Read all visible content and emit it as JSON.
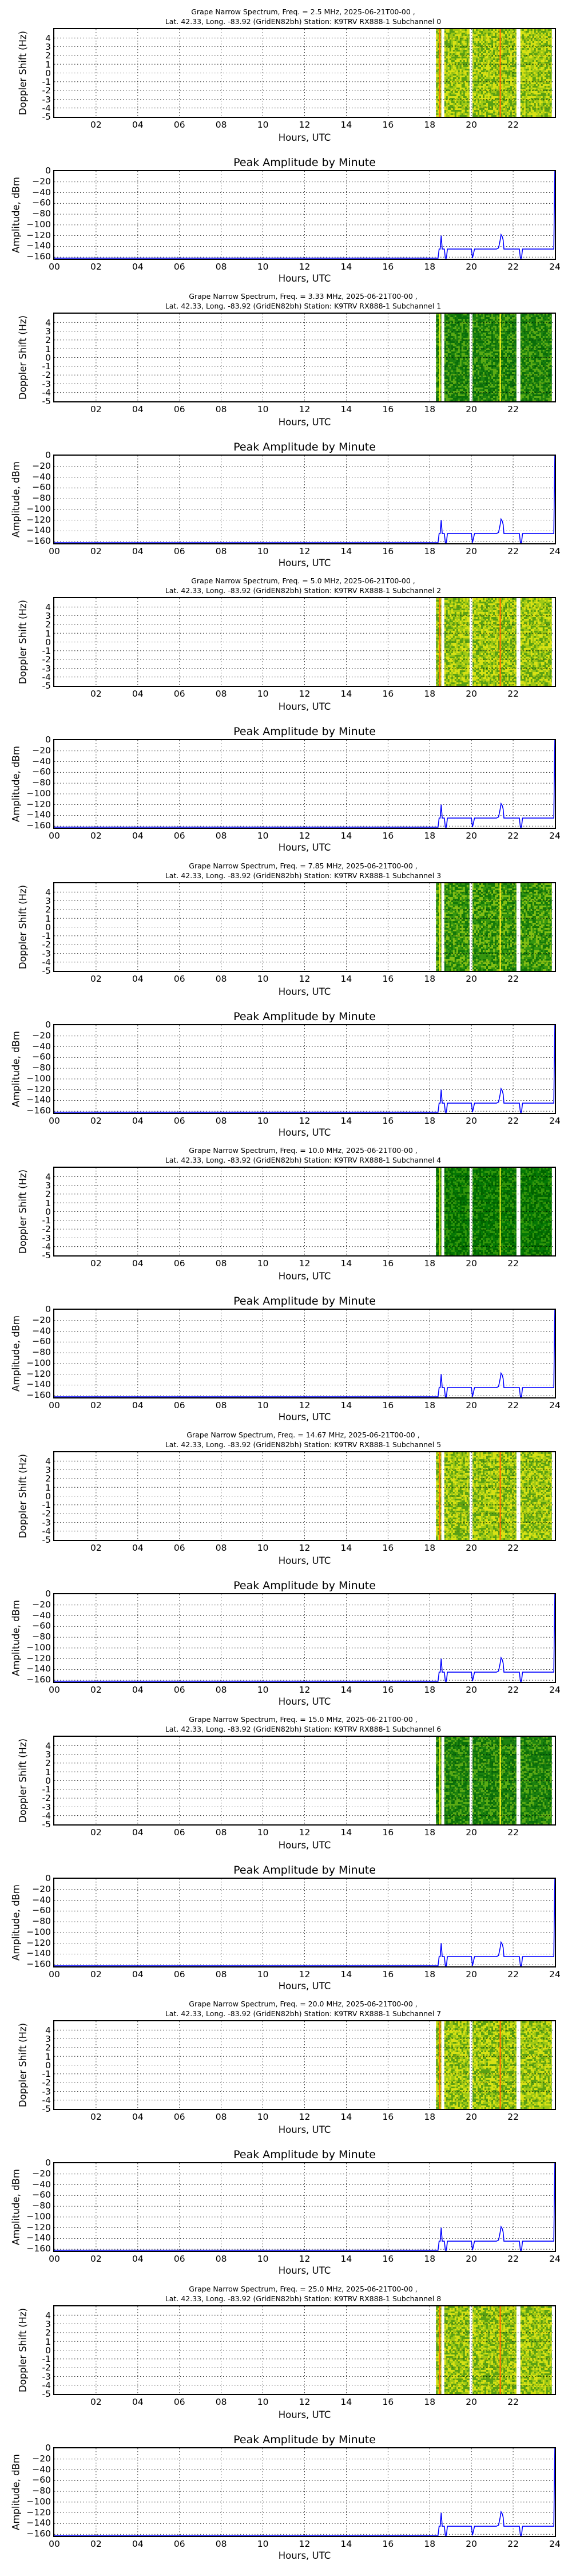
{
  "common": {
    "date": "2025-06-21T00-00",
    "location_line": "Lat.  42.33, Long. -83.92 (GridEN82bh) Station: K9TRV RX888-1",
    "spectrogram_ylabel": "Doppler Shift (Hz)",
    "amplitude_title": "Peak Amplitude by Minute",
    "amplitude_ylabel": "Amplitude, dBm",
    "xlabel": "Hours, UTC",
    "spectrogram_xticks": [
      "02",
      "04",
      "06",
      "08",
      "10",
      "12",
      "14",
      "16",
      "18",
      "20",
      "22"
    ],
    "spectrogram_yticks": [
      "4",
      "3",
      "2",
      "1",
      "0",
      "-1",
      "-2",
      "-3",
      "-4",
      "-5"
    ],
    "amplitude_xticks": [
      "00",
      "02",
      "04",
      "06",
      "08",
      "10",
      "12",
      "14",
      "16",
      "18",
      "20",
      "22",
      "24"
    ],
    "amplitude_yticks": [
      "0",
      "−20",
      "−40",
      "−60",
      "−80",
      "−100",
      "−120",
      "−140",
      "−160"
    ],
    "line_color": "#0000ff"
  },
  "panels": [
    {
      "spectrum_title_1": "Grape Narrow Spectrum, Freq. = 2.5 MHz, 2025-06-21T00-00 ,",
      "spectrum_title_2": "Lat.  42.33, Long. -83.92 (GridEN82bh) Station: K9TRV RX888-1 Subchannel 0",
      "palette": "yellow"
    },
    {
      "spectrum_title_1": "Grape Narrow Spectrum, Freq. = 3.33 MHz, 2025-06-21T00-00 ,",
      "spectrum_title_2": "Lat.  42.33, Long. -83.92 (GridEN82bh) Station: K9TRV RX888-1 Subchannel 1",
      "palette": "green"
    },
    {
      "spectrum_title_1": "Grape Narrow Spectrum, Freq. = 5.0 MHz, 2025-06-21T00-00 ,",
      "spectrum_title_2": "Lat.  42.33, Long. -83.92 (GridEN82bh) Station: K9TRV RX888-1 Subchannel 2",
      "palette": "yellow"
    },
    {
      "spectrum_title_1": "Grape Narrow Spectrum, Freq. = 7.85 MHz, 2025-06-21T00-00 ,",
      "spectrum_title_2": "Lat.  42.33, Long. -83.92 (GridEN82bh) Station: K9TRV RX888-1 Subchannel 3",
      "palette": "midgreen"
    },
    {
      "spectrum_title_1": "Grape Narrow Spectrum, Freq. = 10.0 MHz, 2025-06-21T00-00 ,",
      "spectrum_title_2": "Lat.  42.33, Long. -83.92 (GridEN82bh) Station: K9TRV RX888-1 Subchannel 4",
      "palette": "darkgreen"
    },
    {
      "spectrum_title_1": "Grape Narrow Spectrum, Freq. = 14.67 MHz, 2025-06-21T00-00 ,",
      "spectrum_title_2": "Lat.  42.33, Long. -83.92 (GridEN82bh) Station: K9TRV RX888-1 Subchannel 5",
      "palette": "yellow"
    },
    {
      "spectrum_title_1": "Grape Narrow Spectrum, Freq. = 15.0 MHz, 2025-06-21T00-00 ,",
      "spectrum_title_2": "Lat.  42.33, Long. -83.92 (GridEN82bh) Station: K9TRV RX888-1 Subchannel 6",
      "palette": "green"
    },
    {
      "spectrum_title_1": "Grape Narrow Spectrum, Freq. = 20.0 MHz, 2025-06-21T00-00 ,",
      "spectrum_title_2": "Lat.  42.33, Long. -83.92 (GridEN82bh) Station: K9TRV RX888-1 Subchannel 7",
      "palette": "yellow"
    },
    {
      "spectrum_title_1": "Grape Narrow Spectrum, Freq. = 25.0 MHz, 2025-06-21T00-00 ,",
      "spectrum_title_2": "Lat.  42.33, Long. -83.92 (GridEN82bh) Station: K9TRV RX888-1 Subchannel 8",
      "palette": "yellow"
    }
  ],
  "chart_data": [
    {
      "type": "heatmap",
      "title": "Grape Narrow Spectrum (Subchannels 0-8)",
      "xlabel": "Hours, UTC",
      "ylabel": "Doppler Shift (Hz)",
      "xlim": [
        0,
        24
      ],
      "ylim": [
        -5,
        5
      ],
      "grid": true,
      "data_segments_hours": [
        [
          18.3,
          18.55
        ],
        [
          18.7,
          19.9
        ],
        [
          20.05,
          22.15
        ],
        [
          22.35,
          23.85
        ]
      ],
      "signal_lines_hours": [
        18.45,
        21.35
      ],
      "frequencies_mhz": [
        2.5,
        3.33,
        5.0,
        7.85,
        10.0,
        14.67,
        15.0,
        20.0,
        25.0
      ]
    },
    {
      "type": "line",
      "title": "Peak Amplitude by Minute",
      "xlabel": "Hours, UTC",
      "ylabel": "Amplitude, dBm",
      "xlim": [
        0,
        24
      ],
      "ylim": [
        -163,
        0
      ],
      "grid": true,
      "x": [
        0,
        18.4,
        18.45,
        18.5,
        18.55,
        18.6,
        18.65,
        18.7,
        18.75,
        18.8,
        18.85,
        20.0,
        20.05,
        20.15,
        21.2,
        21.3,
        21.38,
        21.42,
        21.48,
        21.52,
        21.56,
        21.6,
        22.3,
        22.35,
        22.4,
        22.45,
        23.9,
        23.95,
        24.0
      ],
      "values": [
        -163,
        -163,
        -145,
        -145,
        -120,
        -145,
        -145,
        -145,
        -163,
        -163,
        -145,
        -145,
        -163,
        -145,
        -145,
        -143,
        -128,
        -118,
        -122,
        -128,
        -145,
        -145,
        -145,
        -163,
        -163,
        -145,
        -145,
        -145,
        0
      ]
    }
  ]
}
